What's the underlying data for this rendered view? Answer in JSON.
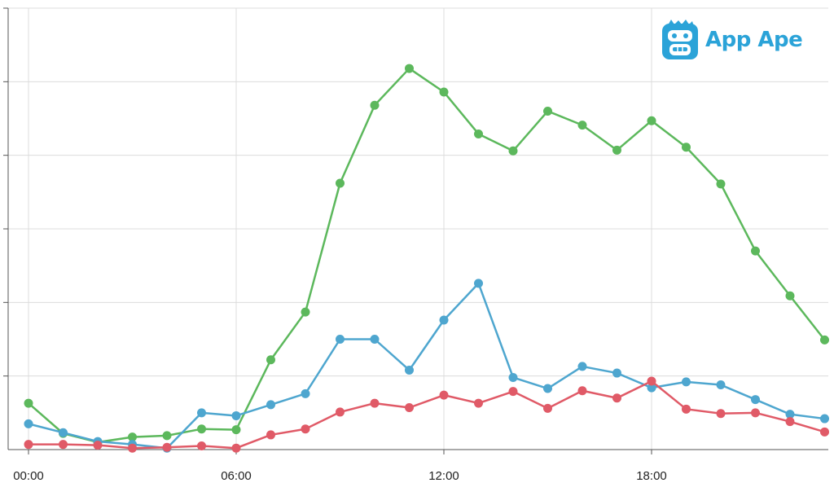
{
  "brand": {
    "name": "App Ape",
    "color": "#2ba3d8"
  },
  "chart_data": {
    "type": "line",
    "x": [
      "00:00",
      "01:00",
      "02:00",
      "03:00",
      "04:00",
      "05:00",
      "06:00",
      "07:00",
      "08:00",
      "09:00",
      "10:00",
      "11:00",
      "12:00",
      "13:00",
      "14:00",
      "15:00",
      "16:00",
      "17:00",
      "18:00",
      "19:00",
      "20:00",
      "21:00",
      "22:00",
      "23:00"
    ],
    "x_tick_labels": [
      "00:00",
      "06:00",
      "12:00",
      "18:00"
    ],
    "ylim": [
      0,
      6
    ],
    "y_tick_count": 6,
    "grid": true,
    "series": [
      {
        "color": "#5cb85c",
        "values": [
          0.63,
          0.22,
          0.1,
          0.17,
          0.19,
          0.28,
          0.27,
          1.22,
          1.87,
          3.62,
          4.68,
          5.18,
          4.86,
          4.29,
          4.06,
          4.6,
          4.41,
          4.07,
          4.47,
          4.11,
          3.61,
          2.7,
          2.09,
          1.49
        ]
      },
      {
        "color": "#4ea6cf",
        "values": [
          0.35,
          0.23,
          0.11,
          0.07,
          0.02,
          0.5,
          0.46,
          0.61,
          0.76,
          1.5,
          1.5,
          1.08,
          1.76,
          2.26,
          0.98,
          0.83,
          1.13,
          1.04,
          0.84,
          0.92,
          0.88,
          0.68,
          0.48,
          0.42
        ]
      },
      {
        "color": "#e05a67",
        "values": [
          0.07,
          0.07,
          0.06,
          0.02,
          0.03,
          0.05,
          0.02,
          0.2,
          0.28,
          0.51,
          0.63,
          0.57,
          0.74,
          0.63,
          0.79,
          0.56,
          0.8,
          0.7,
          0.93,
          0.55,
          0.49,
          0.5,
          0.38,
          0.24
        ]
      }
    ]
  }
}
